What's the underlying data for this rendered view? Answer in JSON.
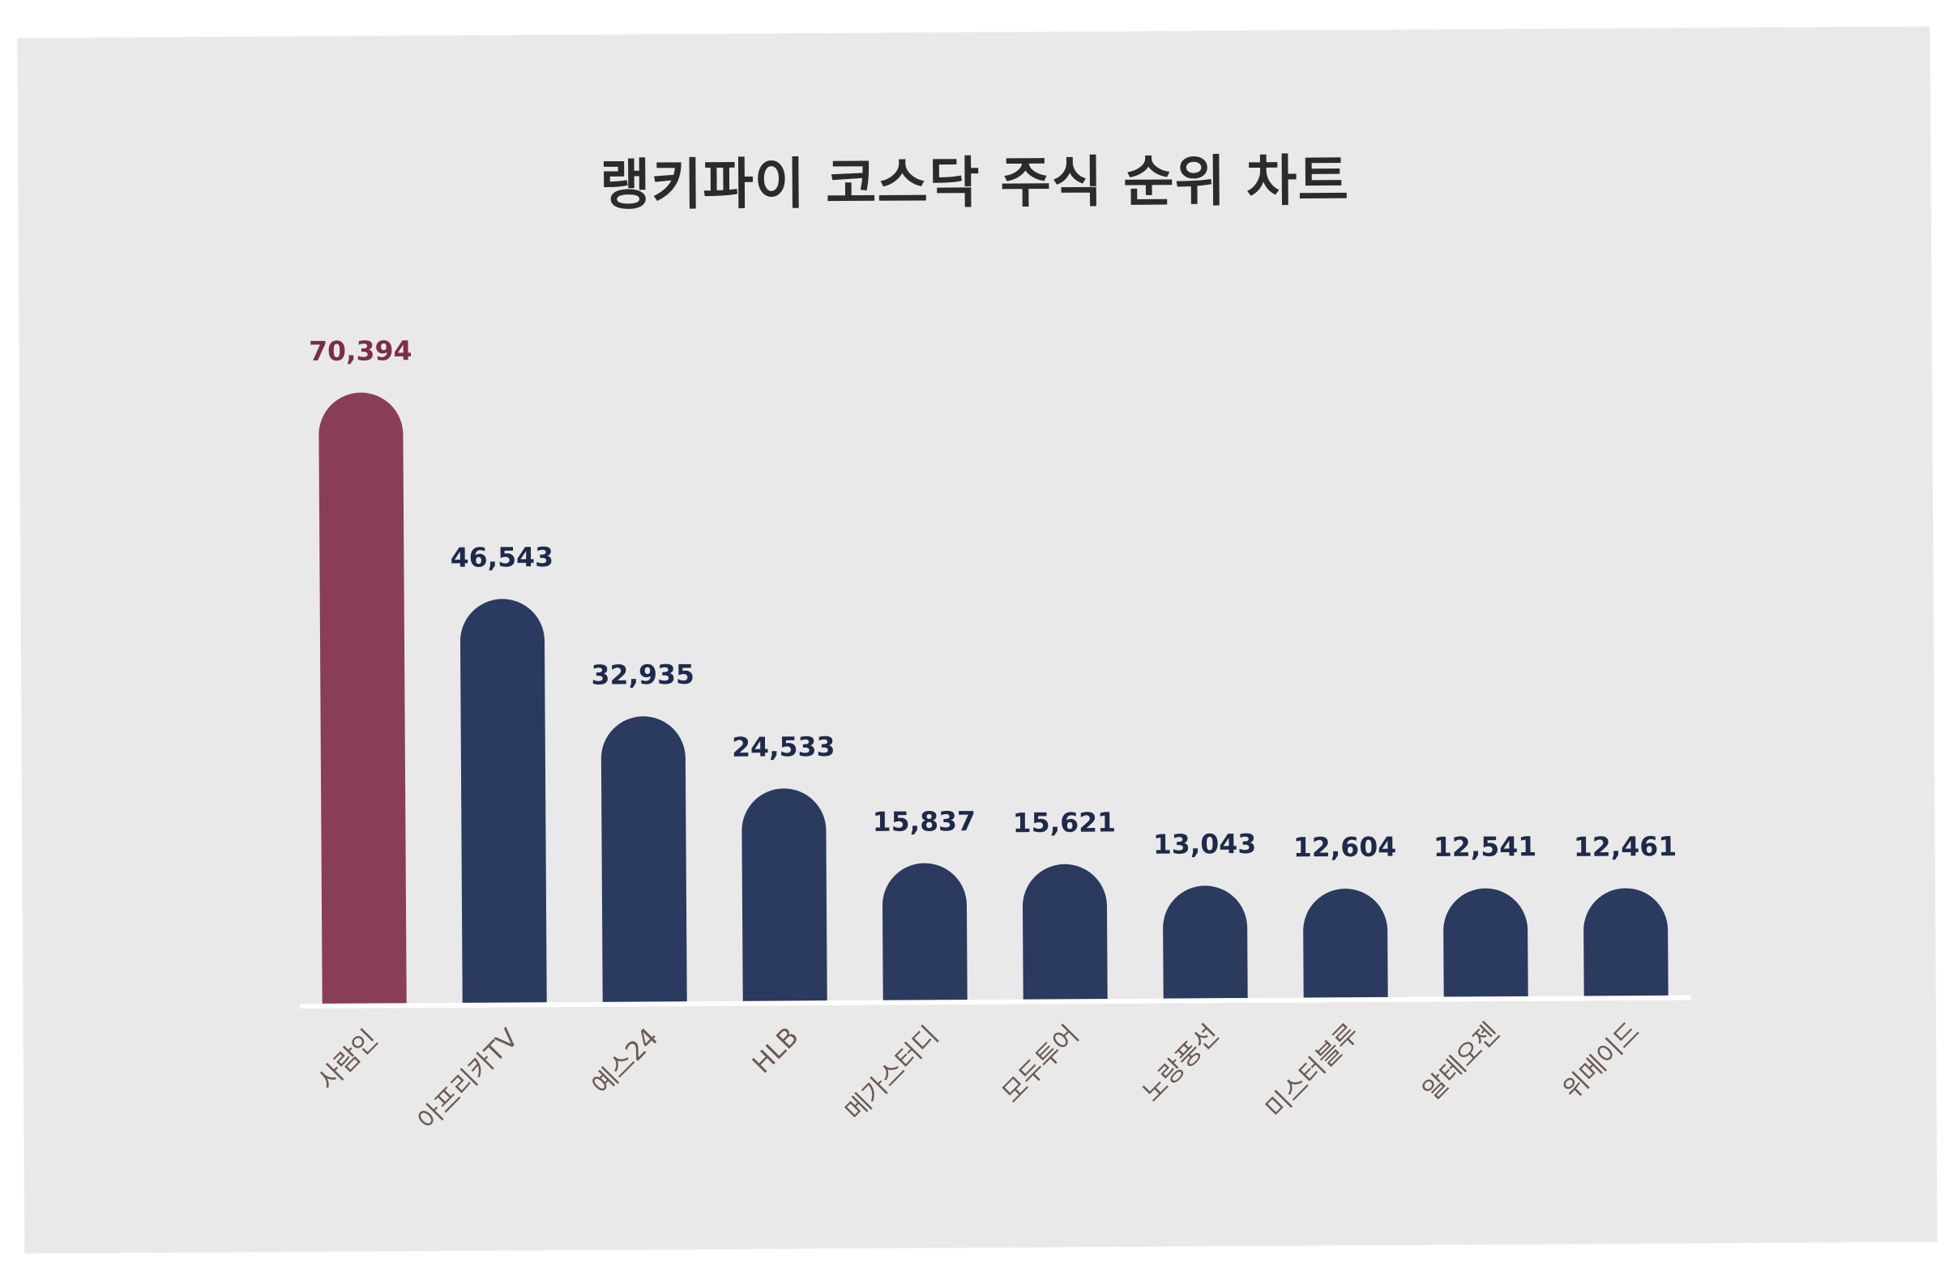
{
  "chart_data": {
    "type": "bar",
    "title": "랭키파이 코스닥 주식 순위 차트",
    "xlabel": "",
    "ylabel": "",
    "ylim": [
      0,
      70394
    ],
    "grid": false,
    "legend": "none",
    "categories": [
      "사람인",
      "아프리카TV",
      "예스24",
      "HLB",
      "메가스터디",
      "모두투어",
      "노랑풍선",
      "미스터블루",
      "알테오젠",
      "위메이드"
    ],
    "values": [
      70394,
      46543,
      32935,
      24533,
      15837,
      15621,
      13043,
      12604,
      12541,
      12461
    ],
    "value_labels": [
      "70,394",
      "46,543",
      "32,935",
      "24,533",
      "15,837",
      "15,621",
      "13,043",
      "12,604",
      "12,541",
      "12,461"
    ],
    "colors": {
      "highlight": "#8a3d58",
      "default": "#2b3a5f",
      "highlight_label": "#7a2e49",
      "default_label": "#1e2a4a",
      "baseline": "#ffffff",
      "background": "#e9e9e9"
    }
  }
}
